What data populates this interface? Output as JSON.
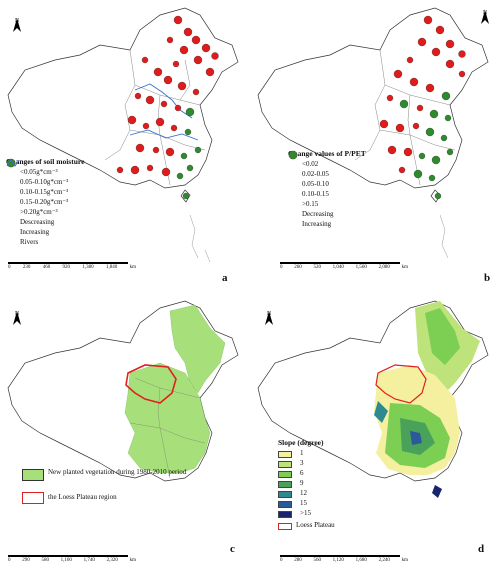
{
  "panels": {
    "a": {
      "letter": "a",
      "legend_title": "Changes of soil moisture",
      "size_classes": [
        "<0.05g*cm⁻³",
        "0.05-0.10g*cm⁻³",
        "0.10-0.15g*cm⁻³",
        "0.15-0.20g*cm⁻³",
        ">0.20g*cm⁻³"
      ],
      "decreasing_label": "Descreasing",
      "increasing_label": "Increasing",
      "rivers_label": "Rivers",
      "scale_labels": [
        "0",
        "230",
        "460",
        "920",
        "1,380",
        "1,840"
      ],
      "scale_unit": "km"
    },
    "b": {
      "letter": "b",
      "legend_title": "Change values of P/PET",
      "size_classes": [
        "<0.02",
        "0.02-0.05",
        "0.05-0.10",
        "0.10-0.15",
        ">0.15"
      ],
      "decreasing_label": "Decreasing",
      "increasing_label": "Increasing",
      "scale_labels": [
        "0",
        "260",
        "520",
        "1,040",
        "1,560",
        "2,080"
      ],
      "scale_unit": "km"
    },
    "c": {
      "letter": "c",
      "vegetation_label": "New planted vegetation during 1980-2010 period",
      "loess_label": "the Loess Plateau region",
      "scale_labels": [
        "0",
        "290",
        "580",
        "1,160",
        "1,740",
        "2,320"
      ],
      "scale_unit": "km"
    },
    "d": {
      "letter": "d",
      "legend_title": "Slope (degree)",
      "slope_classes": [
        "1",
        "3",
        "6",
        "9",
        "12",
        "15",
        ">15"
      ],
      "slope_colors": [
        "#f5f0a0",
        "#bde37a",
        "#7ccf52",
        "#4aa25a",
        "#2e8a8f",
        "#2a5a9a",
        "#18246e"
      ],
      "loess_label": "Loess Plateau",
      "scale_labels": [
        "0",
        "280",
        "560",
        "1,120",
        "1,680",
        "2,240"
      ],
      "scale_unit": "km"
    }
  },
  "north_label": "N",
  "colors": {
    "decreasing": "#e01b1b",
    "increasing": "#2f8a2f",
    "river": "#3a6fd0",
    "loess": "#e02020",
    "vegetation": "#a7e07a"
  }
}
